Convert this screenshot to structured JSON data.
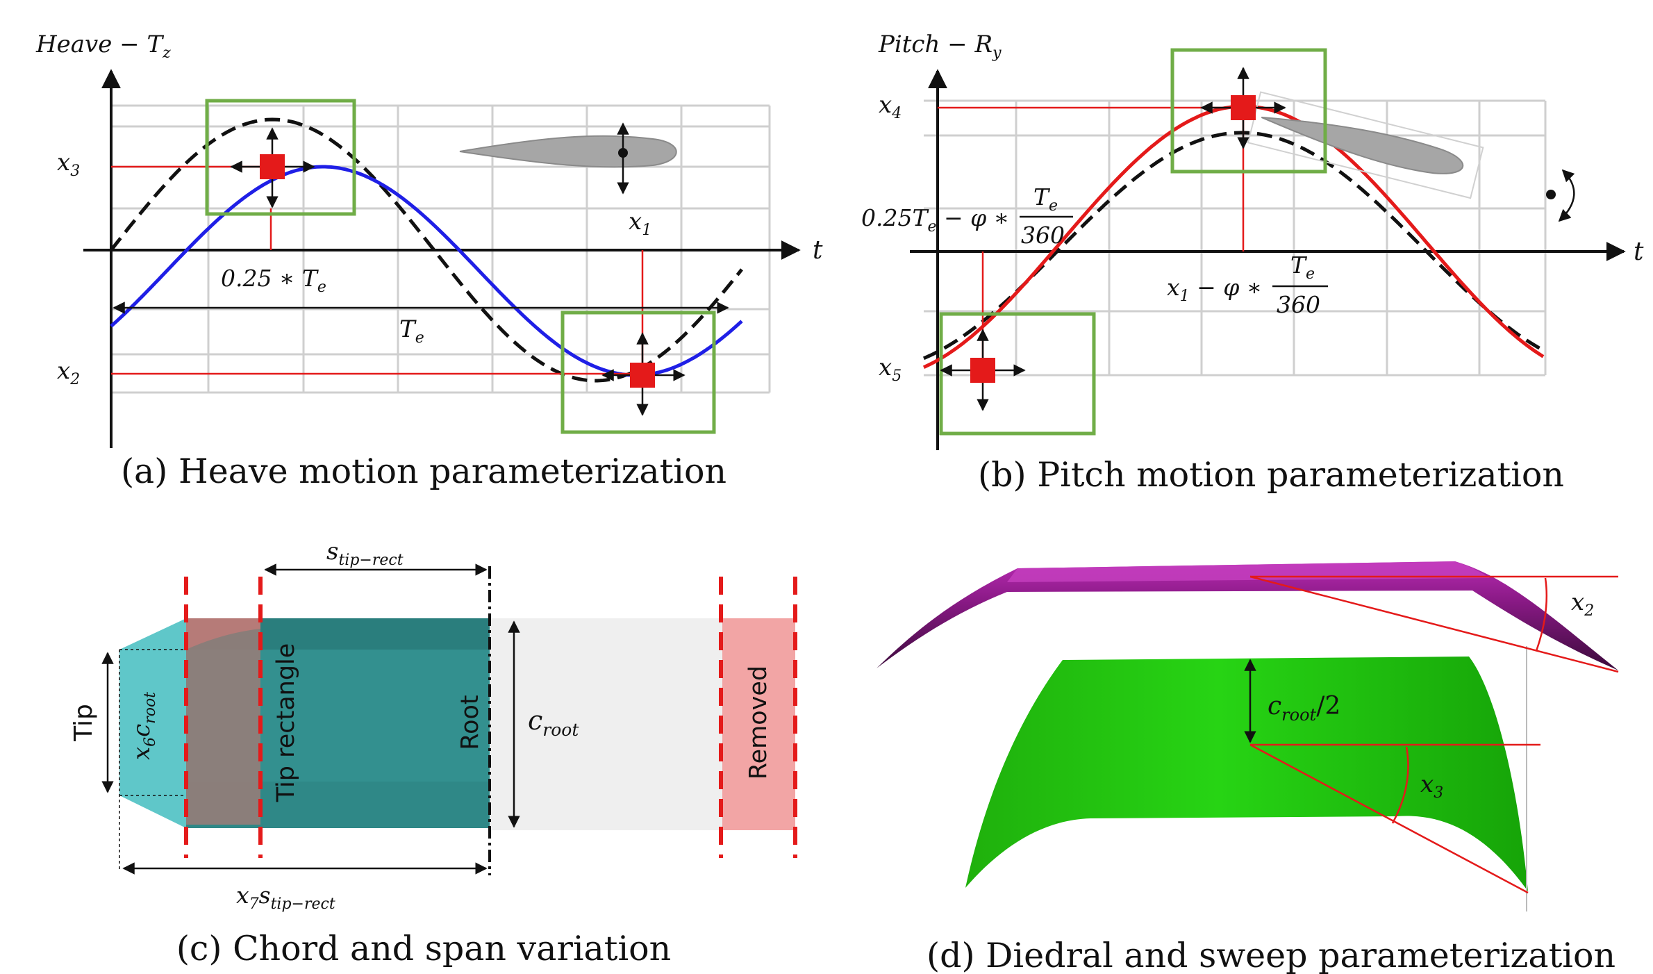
{
  "panels": {
    "a": {
      "caption": "(a) Heave motion parameterization",
      "corner_title": "Heave − T",
      "corner_title_sub": "z",
      "x3": "x",
      "x3_sub": "3",
      "x2": "x",
      "x2_sub": "2",
      "x1": "x",
      "x1_sub": "1",
      "t": "t",
      "quarter": "0.25 ∗ T",
      "quarter_sub": "e",
      "period": "T",
      "period_sub": "e"
    },
    "b": {
      "caption": "(b) Pitch motion parameterization",
      "corner_title": "Pitch − R",
      "corner_title_sub": "y",
      "x4": "x",
      "x4_sub": "4",
      "x5": "x",
      "x5_sub": "5",
      "t": "t",
      "left_expr_a": "0.25T",
      "left_expr_a_sub": "e",
      "left_expr_b": " − φ ∗",
      "frac_num": "T",
      "frac_num_sub": "e",
      "frac_den": "360",
      "right_expr_a": "x",
      "right_expr_a_sub": "1",
      "right_expr_b": " − φ ∗",
      "frac2_num": "T",
      "frac2_num_sub": "e",
      "frac2_den": "360"
    },
    "c": {
      "caption": "(c) Chord and span variation",
      "tip": "Tip",
      "tip_rectangle": "Tip rectangle",
      "root": "Root",
      "removed": "Removed",
      "s_tip": "s",
      "s_tip_sub": "tip−rect",
      "c_root": "c",
      "c_root_sub": "root",
      "x6": "x",
      "x6_sub": "6",
      "x6_tail": "c",
      "x6_tail_sub": "root",
      "x7": "x",
      "x7_sub": "7",
      "x7_tail": "s",
      "x7_tail_sub": "tip−rect"
    },
    "d": {
      "caption": "(d) Diedral and sweep parameterization",
      "x2": "x",
      "x2_sub": "2",
      "x3": "x",
      "x3_sub": "3",
      "croot": "c",
      "croot_sub": "root",
      "croot_tail": "/2"
    }
  },
  "colors": {
    "heave_curve": "#1f1fe6",
    "pitch_curve": "#e41a1a",
    "reference_curve": "#111111",
    "box": "#70ad47",
    "handle": "#e41a1a",
    "tip_fill": "#5fc7c9",
    "tip_rect_fill": "#33908f",
    "removed_fill": "#f2a5a5",
    "wing_top": "#a41f9e",
    "wing_green": "#1ecf0a"
  }
}
